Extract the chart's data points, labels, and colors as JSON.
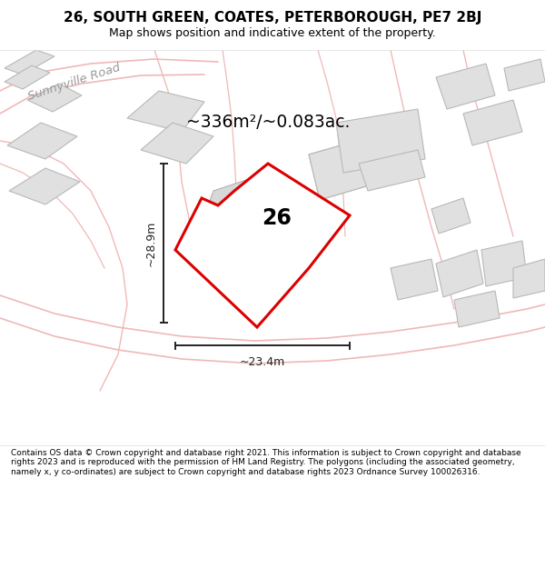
{
  "title": "26, SOUTH GREEN, COATES, PETERBOROUGH, PE7 2BJ",
  "subtitle": "Map shows position and indicative extent of the property.",
  "copyright_text": "Contains OS data © Crown copyright and database right 2021. This information is subject to Crown copyright and database rights 2023 and is reproduced with the permission of HM Land Registry. The polygons (including the associated geometry, namely x, y co-ordinates) are subject to Crown copyright and database rights 2023 Ordnance Survey 100026316.",
  "area_text": "~336m²/~0.083ac.",
  "road_label": "Sunnyville Road",
  "dim_h": "~28.9m",
  "dim_w": "~23.4m",
  "plot_label": "26",
  "map_bg": "#f8f8f8",
  "title_bg": "#ffffff",
  "bottom_bg": "#ffffff",
  "plot_color": "#dd0000",
  "plot_fill": "#ffffff",
  "building_fill": "#e0e0e0",
  "building_edge": "#b8b8b8",
  "road_color": "#f0b8b8",
  "dim_color": "#222222",
  "road_label_color": "#999999",
  "title_fontsize": 11,
  "subtitle_fontsize": 9
}
